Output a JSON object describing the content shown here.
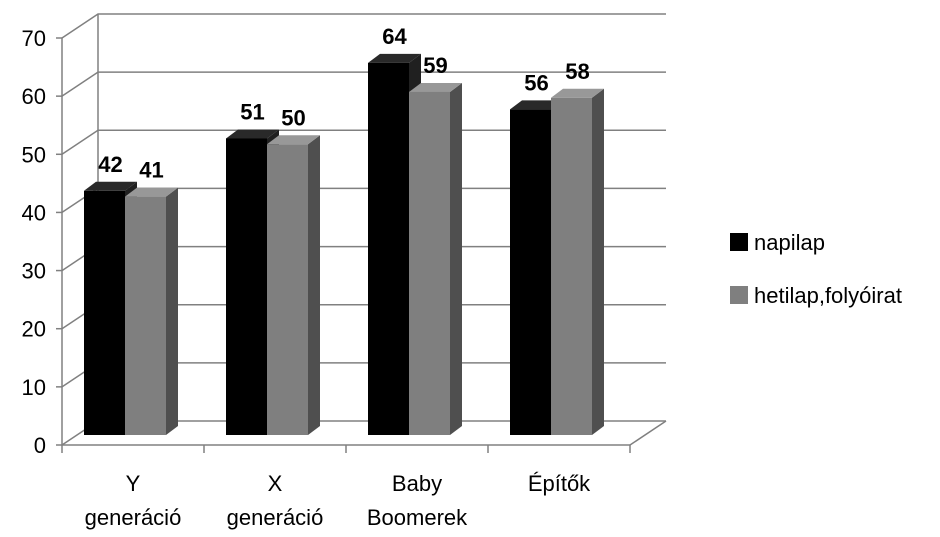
{
  "chart_data": {
    "type": "bar",
    "categories": [
      [
        "Y",
        "generáció"
      ],
      [
        "X",
        "generáció"
      ],
      [
        "Baby",
        "Boomerek"
      ],
      [
        "Építők"
      ]
    ],
    "series": [
      {
        "name": "napilap",
        "values": [
          42,
          51,
          64,
          56
        ],
        "color": "#000000"
      },
      {
        "name": "hetilap,folyóirat",
        "values": [
          41,
          50,
          59,
          58
        ],
        "color": "#7f7f7f"
      }
    ],
    "y_ticks": [
      "0",
      "10",
      "20",
      "30",
      "40",
      "50",
      "60",
      "70"
    ],
    "data_labels": [
      [
        "42",
        "51",
        "64",
        "56"
      ],
      [
        "41",
        "50",
        "59",
        "58"
      ]
    ],
    "ylim": [
      0,
      70
    ],
    "grid": true,
    "legend_position": "right",
    "style": "3d-clustered-column"
  }
}
